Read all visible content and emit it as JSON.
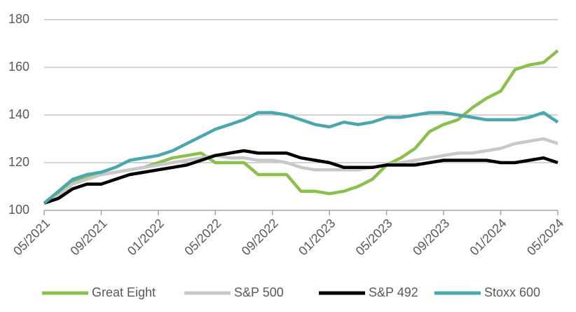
{
  "chart_data": {
    "type": "line",
    "x": [
      "05/2021",
      "06/2021",
      "07/2021",
      "08/2021",
      "09/2021",
      "10/2021",
      "11/2021",
      "12/2021",
      "01/2022",
      "02/2022",
      "03/2022",
      "04/2022",
      "05/2022",
      "06/2022",
      "07/2022",
      "08/2022",
      "09/2022",
      "10/2022",
      "11/2022",
      "12/2022",
      "01/2023",
      "02/2023",
      "03/2023",
      "04/2023",
      "05/2023",
      "06/2023",
      "07/2023",
      "08/2023",
      "09/2023",
      "10/2023",
      "11/2023",
      "12/2023",
      "01/2024",
      "02/2024",
      "03/2024",
      "04/2024",
      "05/2024"
    ],
    "xticks": [
      "05/2021",
      "09/2021",
      "01/2022",
      "05/2022",
      "09/2022",
      "01/2023",
      "05/2023",
      "09/2023",
      "01/2024",
      "05/2024"
    ],
    "ylim": [
      100,
      180
    ],
    "yticks": [
      100,
      120,
      140,
      160,
      180
    ],
    "grid": true,
    "series": [
      {
        "name": "Great Eight",
        "color": "#8cbf4e",
        "values": [
          103,
          107,
          112,
          114,
          115,
          116,
          117,
          118,
          120,
          122,
          123,
          124,
          120,
          120,
          120,
          115,
          115,
          115,
          108,
          108,
          107,
          108,
          110,
          113,
          119,
          122,
          126,
          133,
          136,
          138,
          143,
          147,
          150,
          159,
          161,
          162,
          167
        ]
      },
      {
        "name": "S&P 500",
        "color": "#c8c8c8",
        "values": [
          103,
          106,
          111,
          113,
          115,
          116,
          117,
          118,
          119,
          120,
          121,
          122,
          123,
          122,
          122,
          121,
          121,
          120,
          118,
          117,
          117,
          117,
          117,
          118,
          119,
          120,
          121,
          122,
          123,
          124,
          124,
          125,
          126,
          128,
          129,
          130,
          128
        ]
      },
      {
        "name": "S&P 492",
        "color": "#000000",
        "values": [
          103,
          105,
          109,
          111,
          111,
          113,
          115,
          116,
          117,
          118,
          119,
          121,
          123,
          124,
          125,
          124,
          124,
          124,
          122,
          121,
          120,
          118,
          118,
          118,
          119,
          119,
          119,
          120,
          121,
          121,
          121,
          121,
          120,
          120,
          121,
          122,
          120
        ]
      },
      {
        "name": "Stoxx 600",
        "color": "#4aa8ad",
        "values": [
          103,
          108,
          113,
          115,
          116,
          118,
          121,
          122,
          123,
          125,
          128,
          131,
          134,
          136,
          138,
          141,
          141,
          140,
          138,
          136,
          135,
          137,
          136,
          137,
          139,
          139,
          140,
          141,
          141,
          140,
          139,
          138,
          138,
          138,
          139,
          141,
          137
        ]
      }
    ]
  }
}
